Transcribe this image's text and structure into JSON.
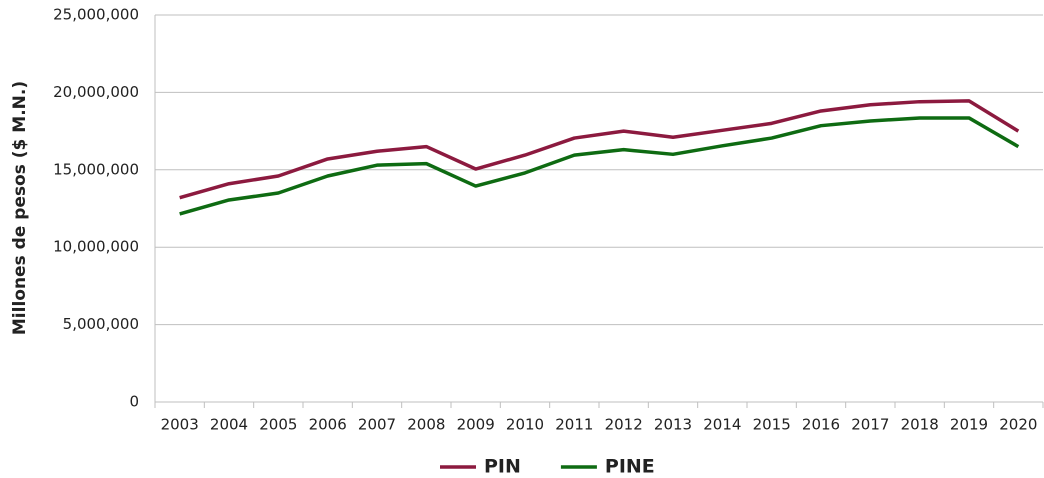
{
  "chart_data": {
    "type": "line",
    "y_label": "Millones de pesos ($ M.N.)",
    "categories": [
      "2003",
      "2004",
      "2005",
      "2006",
      "2007",
      "2008",
      "2009",
      "2010",
      "2011",
      "2012",
      "2013",
      "2014",
      "2015",
      "2016",
      "2017",
      "2018",
      "2019",
      "2020"
    ],
    "series": [
      {
        "name": "PIN",
        "color": "#8c1a3f",
        "values": [
          13200000,
          14100000,
          14600000,
          15700000,
          16200000,
          16500000,
          15050000,
          15950000,
          17050000,
          17500000,
          17100000,
          17550000,
          18000000,
          18800000,
          19200000,
          19400000,
          19450000,
          17500000
        ]
      },
      {
        "name": "PINE",
        "color": "#0e6b12",
        "values": [
          12150000,
          13050000,
          13500000,
          14600000,
          15300000,
          15400000,
          13950000,
          14800000,
          15950000,
          16300000,
          16000000,
          16550000,
          17050000,
          17850000,
          18150000,
          18350000,
          18350000,
          16500000
        ]
      }
    ],
    "ylim": [
      0,
      25000000
    ],
    "yticks": [
      0,
      {
        "value": 5000000,
        "label": "5,000,000"
      },
      {
        "value": 10000000,
        "label": "10,000,000"
      },
      {
        "value": 15000000,
        "label": "15,000,000"
      },
      {
        "value": 20000000,
        "label": "20,000,000"
      },
      {
        "value": 25000000,
        "label": "25,000,000"
      }
    ],
    "grid": true,
    "legend": "bottom"
  }
}
